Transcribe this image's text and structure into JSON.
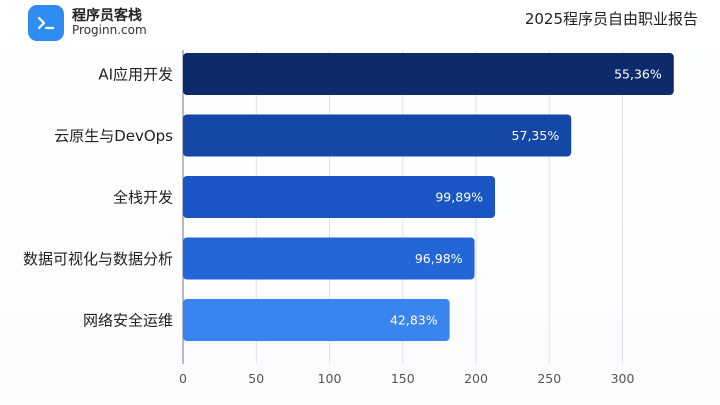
{
  "brand": {
    "name": "程序员客栈",
    "domain": "Proginn.com",
    "icon": "terminal-prompt-icon",
    "color": "#2f8cf0"
  },
  "chart_data": {
    "type": "bar",
    "orientation": "horizontal",
    "title": "2025程序员自由职业报告",
    "xlabel": "",
    "ylabel": "",
    "categories": [
      "AI应用开发",
      "云原生与DevOps",
      "全栈开发",
      "数据可视化与数据分析",
      "网络安全运维"
    ],
    "values": [
      335,
      265,
      213,
      199,
      182
    ],
    "data_labels": [
      "55,36%",
      "57,35%",
      "99,89%",
      "96,98%",
      "42,83%"
    ],
    "bar_colors": [
      "#0d2a6b",
      "#1447a6",
      "#1a55c4",
      "#2366d8",
      "#3a84ef"
    ],
    "xlim": [
      0,
      340
    ],
    "xticks": [
      0,
      50,
      100,
      150,
      200,
      250,
      300
    ],
    "grid": true
  }
}
